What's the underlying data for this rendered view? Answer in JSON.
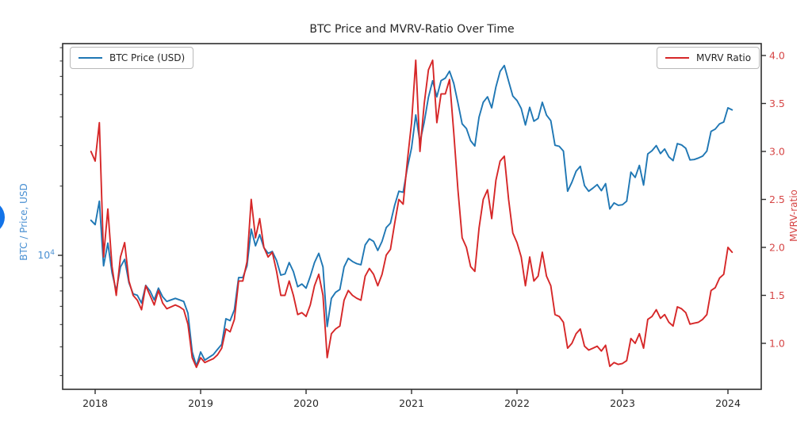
{
  "page": {
    "background": "#ffffff"
  },
  "chart_data": {
    "type": "line",
    "title": "BTC Price and MVRV-Ratio Over Time",
    "grid": false,
    "x_axis": {
      "ticks": [
        2018,
        2019,
        2020,
        2021,
        2022,
        2023,
        2024
      ],
      "start": 2017.96,
      "step": 0.04
    },
    "left_axis": {
      "label": "BTC / Price, USD",
      "scale": "log",
      "text_color": "#4a90d2",
      "major_tick": {
        "base": "10",
        "exponent": "4",
        "value_usd": 10000
      },
      "minor_ticks_usd": [
        3000,
        4000,
        5000,
        6000,
        7000,
        8000,
        9000,
        20000,
        30000,
        40000,
        50000,
        60000,
        70000,
        80000
      ],
      "range_usd": [
        2600,
        85000
      ]
    },
    "right_axis": {
      "label": "MVRV-ratio",
      "scale": "linear",
      "text_color": "#d64545",
      "ticks": [
        1.0,
        1.5,
        2.0,
        2.5,
        3.0,
        3.5,
        4.0
      ],
      "range": [
        0.62,
        4.08
      ]
    },
    "legend": [
      {
        "label": "BTC Price (USD)",
        "color": "#1f77b4",
        "position": "upper left"
      },
      {
        "label": "MVRV Ratio",
        "color": "#d62728",
        "position": "upper right"
      }
    ],
    "series": [
      {
        "name": "BTC Price (USD)",
        "axis": "left",
        "color": "#1f77b4",
        "units": "thousand USD",
        "values": [
          14.2,
          13.6,
          17.2,
          9.0,
          11.3,
          8.4,
          7.0,
          8.9,
          9.6,
          7.6,
          6.8,
          6.7,
          6.2,
          7.4,
          7.0,
          6.4,
          7.2,
          6.6,
          6.3,
          6.4,
          6.5,
          6.4,
          6.3,
          5.6,
          3.8,
          3.3,
          3.8,
          3.5,
          3.6,
          3.7,
          3.9,
          4.1,
          5.3,
          5.2,
          5.8,
          8.0,
          8.0,
          9.0,
          13.0,
          11.0,
          12.3,
          10.8,
          10.2,
          10.4,
          9.5,
          8.2,
          8.3,
          9.3,
          8.5,
          7.3,
          7.5,
          7.2,
          8.1,
          9.3,
          10.2,
          8.9,
          4.9,
          6.5,
          6.9,
          7.1,
          8.9,
          9.7,
          9.4,
          9.2,
          9.1,
          11.1,
          11.8,
          11.5,
          10.5,
          11.5,
          13.2,
          13.8,
          16.5,
          19.0,
          18.8,
          24.0,
          29.3,
          40.8,
          31.0,
          38.0,
          48.7,
          57.4,
          48.9,
          57.5,
          59.0,
          63.2,
          56.0,
          46.0,
          37.3,
          35.6,
          31.5,
          29.9,
          39.9,
          46.3,
          48.9,
          43.8,
          54.0,
          63.1,
          66.9,
          57.2,
          49.3,
          47.1,
          43.5,
          36.9,
          44.0,
          38.3,
          39.4,
          46.3,
          40.7,
          38.5,
          30.1,
          29.8,
          28.4,
          19.0,
          20.8,
          23.2,
          24.4,
          20.1,
          19.0,
          19.6,
          20.3,
          19.1,
          20.5,
          15.9,
          16.9,
          16.5,
          16.6,
          17.2,
          23.0,
          21.8,
          24.6,
          20.2,
          27.6,
          28.5,
          30.0,
          27.7,
          29.0,
          26.8,
          25.8,
          30.6,
          30.2,
          29.2,
          26.0,
          26.1,
          26.5,
          27.0,
          28.4,
          34.6,
          35.4,
          37.3,
          38.0,
          43.8,
          42.9
        ]
      },
      {
        "name": "MVRV Ratio",
        "axis": "right",
        "color": "#d62728",
        "values": [
          3.0,
          2.9,
          3.3,
          1.9,
          2.4,
          1.8,
          1.5,
          1.9,
          2.05,
          1.65,
          1.5,
          1.45,
          1.35,
          1.6,
          1.5,
          1.4,
          1.55,
          1.42,
          1.36,
          1.38,
          1.4,
          1.38,
          1.35,
          1.2,
          0.85,
          0.75,
          0.85,
          0.8,
          0.82,
          0.84,
          0.88,
          0.95,
          1.15,
          1.12,
          1.25,
          1.65,
          1.65,
          1.85,
          2.5,
          2.1,
          2.3,
          2.0,
          1.9,
          1.95,
          1.75,
          1.5,
          1.5,
          1.65,
          1.5,
          1.3,
          1.32,
          1.28,
          1.4,
          1.6,
          1.72,
          1.5,
          0.85,
          1.1,
          1.15,
          1.18,
          1.45,
          1.55,
          1.5,
          1.47,
          1.45,
          1.7,
          1.78,
          1.72,
          1.6,
          1.72,
          1.92,
          1.98,
          2.25,
          2.5,
          2.45,
          2.9,
          3.3,
          3.95,
          3.0,
          3.5,
          3.85,
          3.95,
          3.3,
          3.6,
          3.6,
          3.75,
          3.2,
          2.6,
          2.1,
          2.0,
          1.8,
          1.75,
          2.2,
          2.5,
          2.6,
          2.3,
          2.7,
          2.9,
          2.95,
          2.5,
          2.15,
          2.05,
          1.9,
          1.6,
          1.9,
          1.65,
          1.7,
          1.95,
          1.7,
          1.6,
          1.3,
          1.28,
          1.22,
          0.95,
          1.0,
          1.1,
          1.15,
          0.97,
          0.93,
          0.95,
          0.97,
          0.92,
          0.98,
          0.76,
          0.8,
          0.78,
          0.79,
          0.82,
          1.05,
          1.0,
          1.1,
          0.95,
          1.25,
          1.28,
          1.35,
          1.26,
          1.3,
          1.22,
          1.18,
          1.38,
          1.36,
          1.32,
          1.2,
          1.21,
          1.22,
          1.25,
          1.3,
          1.55,
          1.58,
          1.68,
          1.72,
          2.0,
          1.95
        ]
      }
    ]
  },
  "decorations": {
    "edge_blob_color": "#1273e8"
  }
}
